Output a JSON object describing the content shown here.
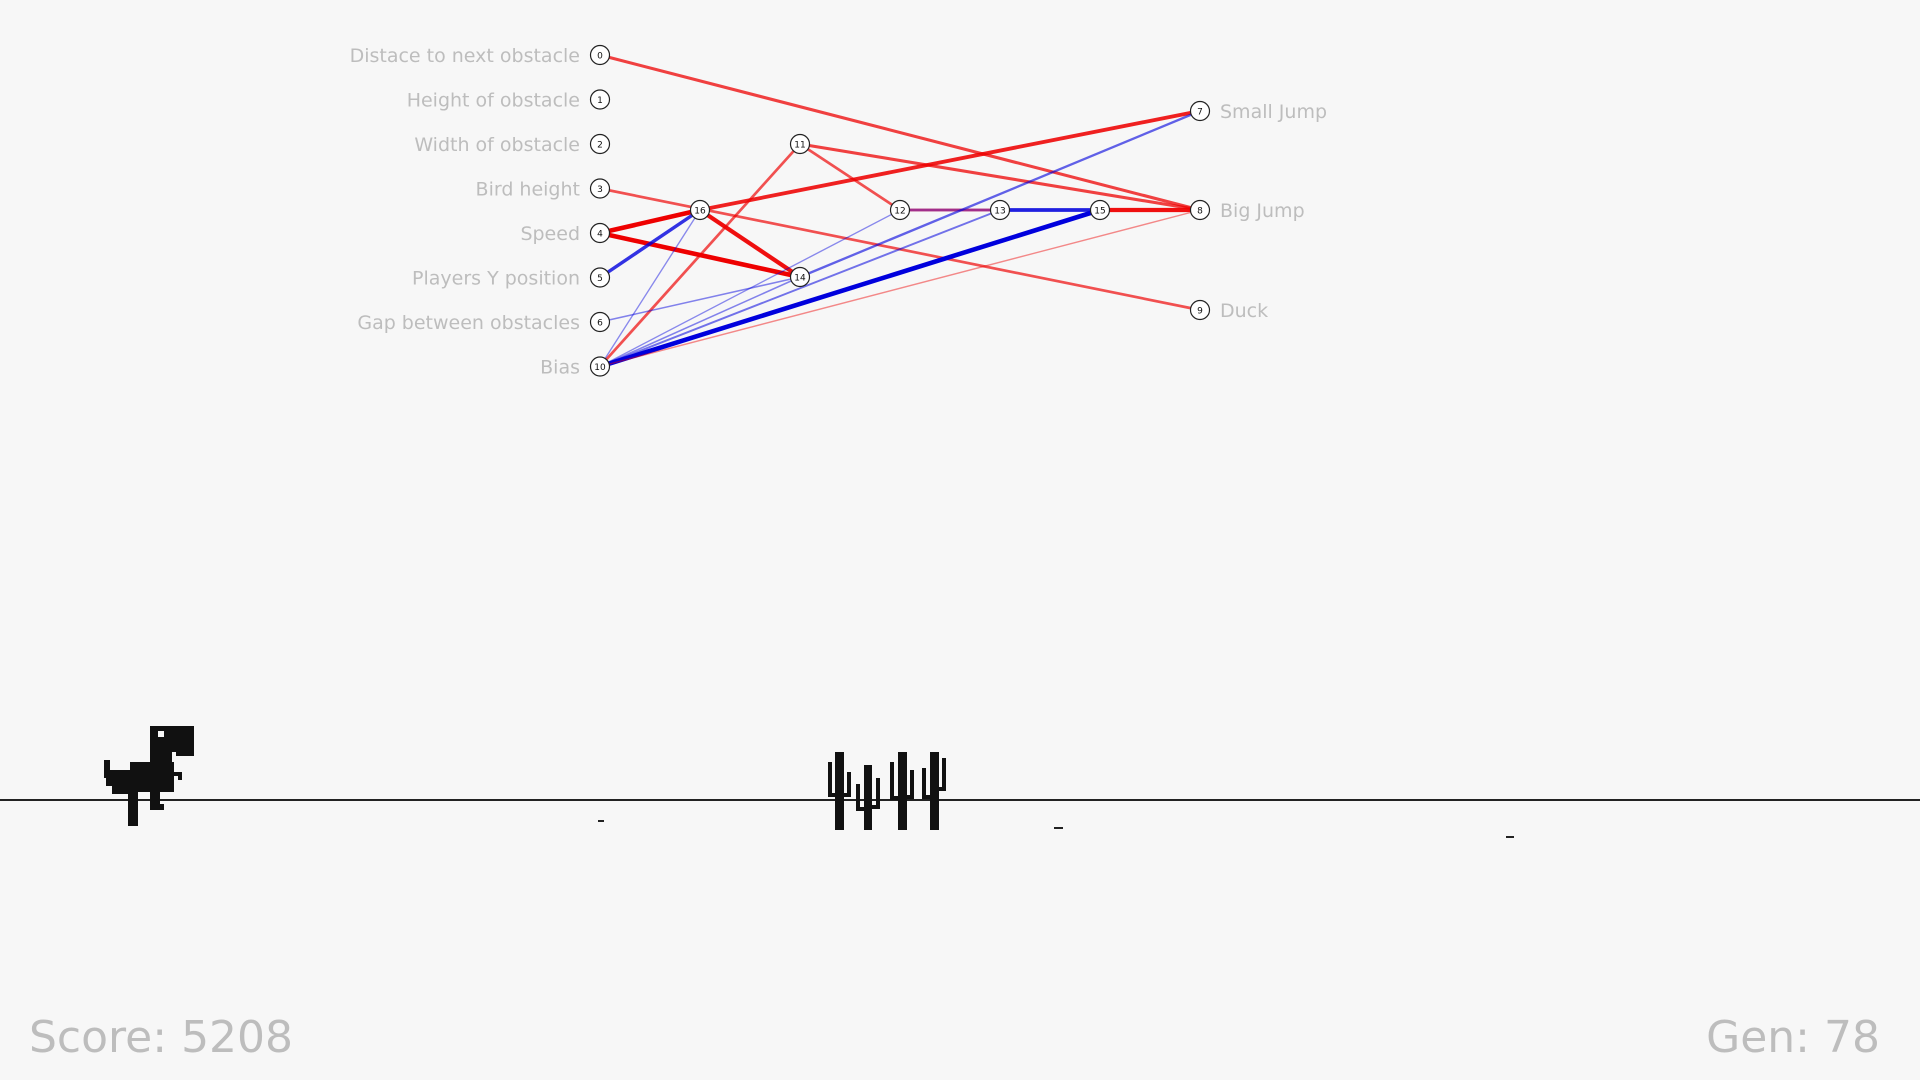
{
  "network": {
    "inputs": [
      {
        "id": "0",
        "label": "Distace to next obstacle"
      },
      {
        "id": "1",
        "label": "Height of obstacle"
      },
      {
        "id": "2",
        "label": "Width of obstacle"
      },
      {
        "id": "3",
        "label": "Bird height"
      },
      {
        "id": "4",
        "label": "Speed"
      },
      {
        "id": "5",
        "label": "Players Y position"
      },
      {
        "id": "6",
        "label": "Gap between obstacles"
      },
      {
        "id": "10",
        "label": "Bias"
      }
    ],
    "outputs": [
      {
        "id": "7",
        "label": "Small Jump"
      },
      {
        "id": "8",
        "label": "Big Jump"
      },
      {
        "id": "9",
        "label": "Duck"
      }
    ],
    "hidden": [
      {
        "id": "16"
      },
      {
        "id": "11"
      },
      {
        "id": "14"
      },
      {
        "id": "12"
      },
      {
        "id": "13"
      },
      {
        "id": "15"
      }
    ],
    "connections": [
      {
        "from": "0",
        "to": "8",
        "weight": 0.6
      },
      {
        "from": "3",
        "to": "9",
        "weight": 0.5
      },
      {
        "from": "4",
        "to": "16",
        "weight": 1.0
      },
      {
        "from": "4",
        "to": "14",
        "weight": 1.0
      },
      {
        "from": "16",
        "to": "14",
        "weight": 0.9
      },
      {
        "from": "5",
        "to": "16",
        "weight": -0.7
      },
      {
        "from": "16",
        "to": "7",
        "weight": 0.8
      },
      {
        "from": "10",
        "to": "11",
        "weight": 0.5
      },
      {
        "from": "11",
        "to": "12",
        "weight": 0.5
      },
      {
        "from": "11",
        "to": "8",
        "weight": 0.6
      },
      {
        "from": "12",
        "to": "13",
        "weight": 0.5
      },
      {
        "from": "12",
        "to": "13",
        "weight": -0.5
      },
      {
        "from": "13",
        "to": "15",
        "weight": -0.8
      },
      {
        "from": "15",
        "to": "8",
        "weight": 0.9
      },
      {
        "from": "10",
        "to": "15",
        "weight": -1.0
      },
      {
        "from": "14",
        "to": "7",
        "weight": -0.4
      },
      {
        "from": "6",
        "to": "14",
        "weight": -0.2
      },
      {
        "from": "10",
        "to": "16",
        "weight": -0.15
      },
      {
        "from": "10",
        "to": "12",
        "weight": -0.15
      },
      {
        "from": "10",
        "to": "13",
        "weight": -0.3
      },
      {
        "from": "10",
        "to": "8",
        "weight": 0.15
      },
      {
        "from": "10",
        "to": "14",
        "weight": -0.2
      }
    ]
  },
  "hud": {
    "score_label": "Score:",
    "score_value": "5208",
    "gen_label": "Gen:",
    "gen_value": "78"
  },
  "colors": {
    "positive": "#ee0000",
    "negative": "#0000dd",
    "mixed": "#7a1fa8",
    "label": "#bdbdbd",
    "ink": "#111111",
    "background": "#f7f7f7"
  },
  "sprites": {
    "player": "dinosaur",
    "obstacle": "cactus-group"
  }
}
